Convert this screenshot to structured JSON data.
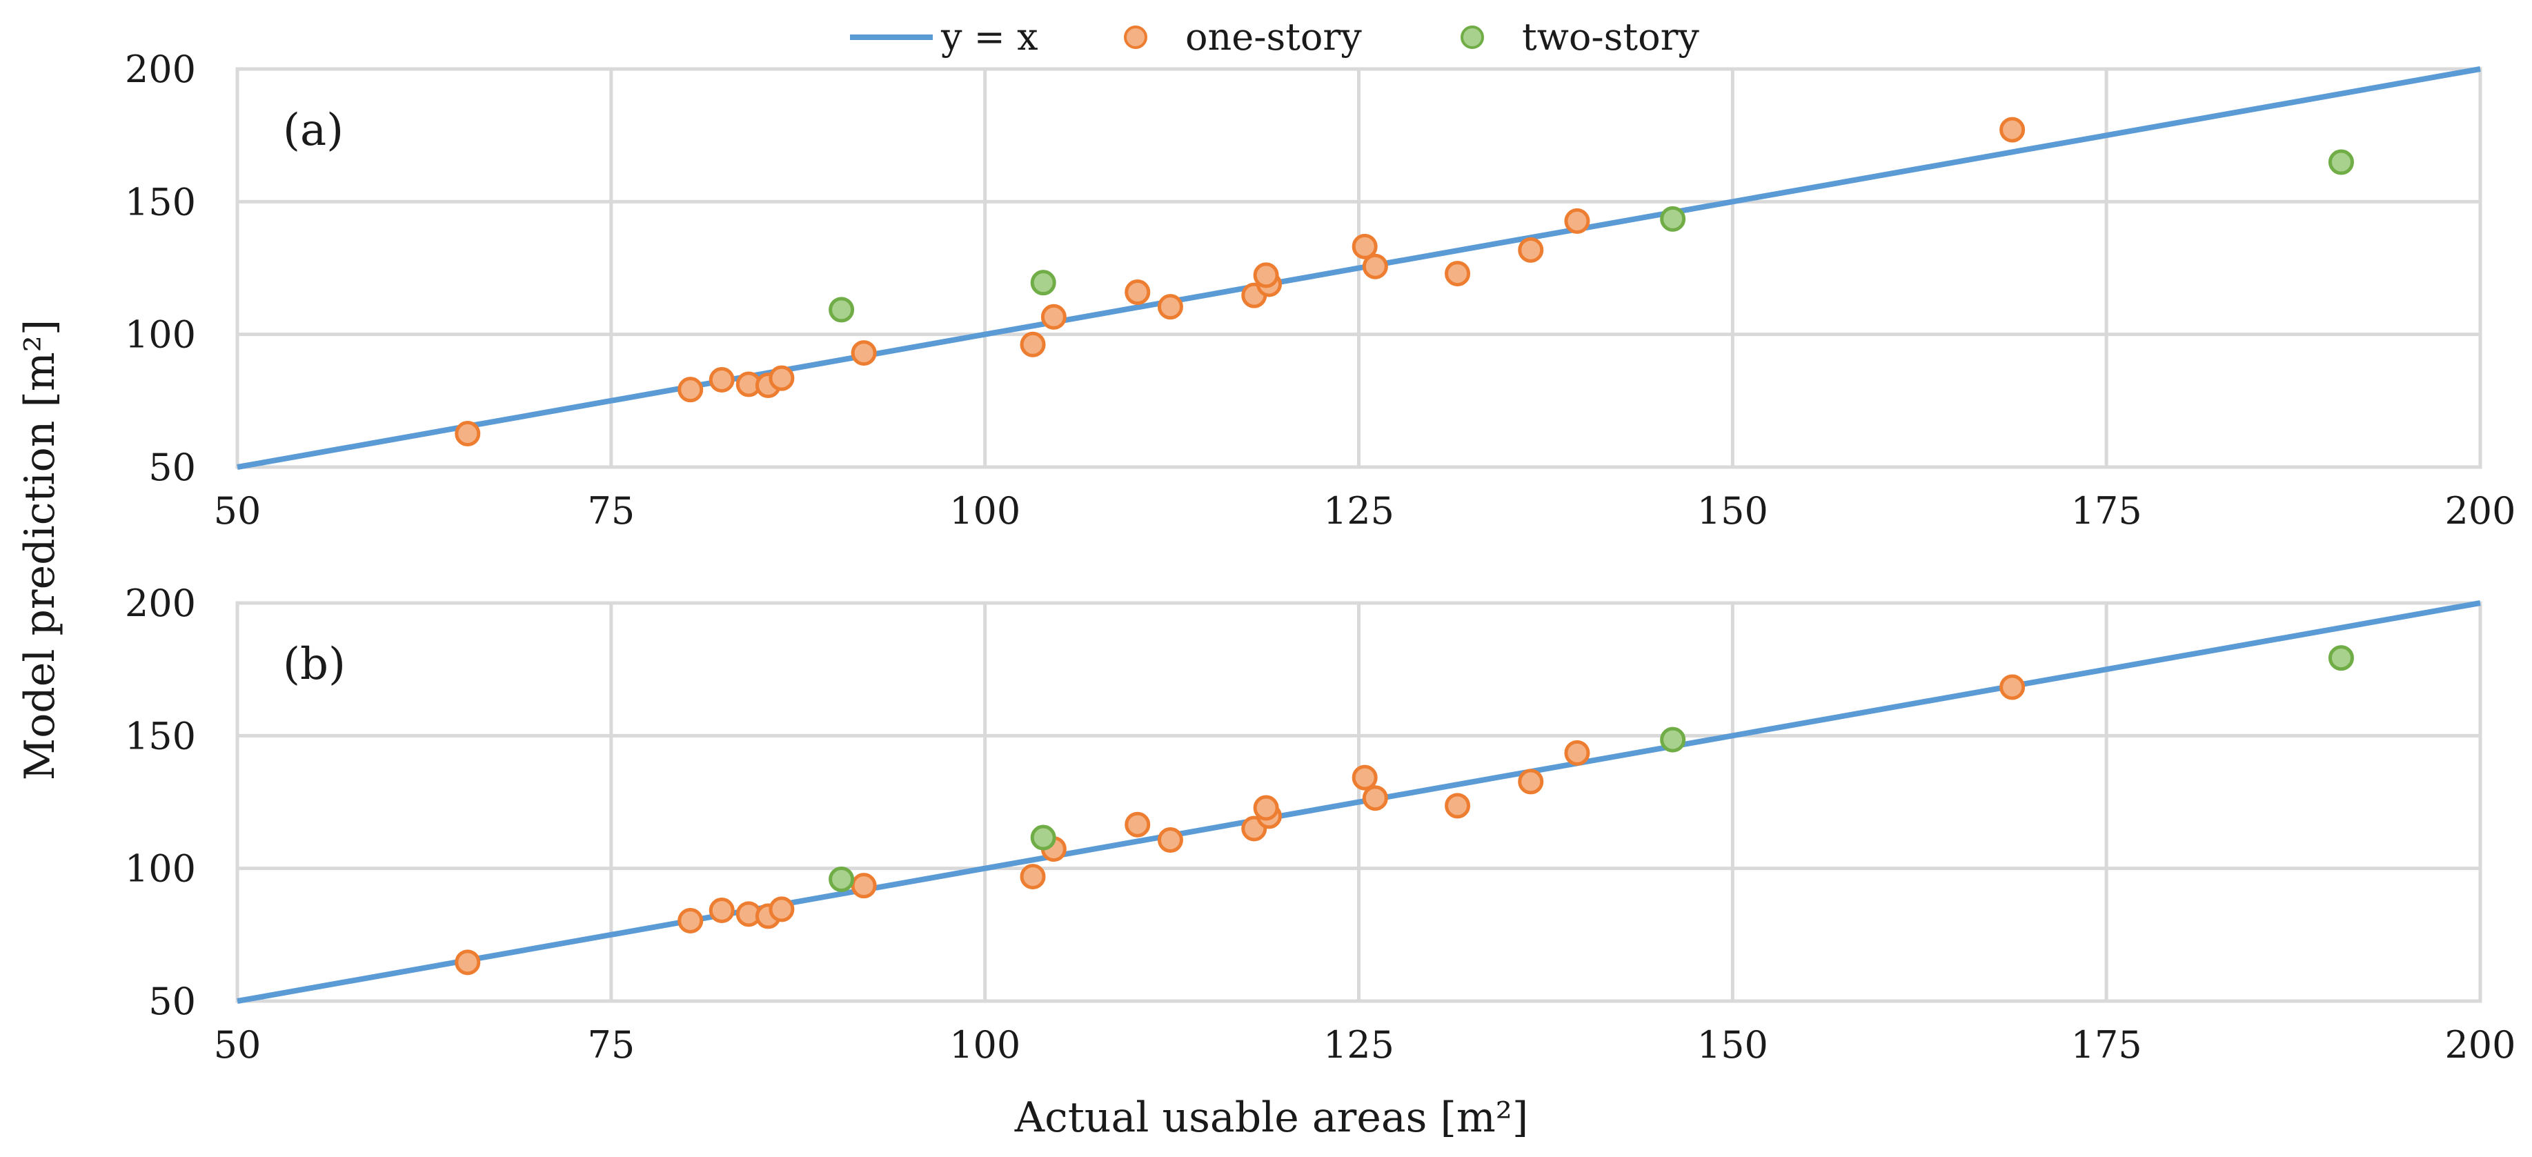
{
  "legend": {
    "identity": "y = x",
    "one_story": "one-story",
    "two_story": "two-story"
  },
  "colors": {
    "identity_line": "#5b9bd5",
    "one_story_fill": "#f4b183",
    "one_story_edge": "#ed7d31",
    "two_story_fill": "#a9d18e",
    "two_story_edge": "#70ad47",
    "grid": "#d9d9d9"
  },
  "chart_data": [
    {
      "type": "scatter",
      "panel_label": "(a)",
      "xlim": [
        50,
        200
      ],
      "ylim": [
        50,
        200
      ],
      "x_ticks": [
        "50",
        "75",
        "100",
        "125",
        "150",
        "175",
        "200"
      ],
      "y_ticks": [
        "50",
        "100",
        "150",
        "200"
      ],
      "xlabel": "Actual usable areas [m²]",
      "ylabel": "Model prediction [m²]",
      "identity_line": {
        "name": "y = x",
        "x": [
          50,
          200
        ],
        "y": [
          50,
          200
        ]
      },
      "series": [
        {
          "name": "one-story",
          "x": [
            65.4,
            80.3,
            82.4,
            84.2,
            85.5,
            86.4,
            91.9,
            103.2,
            104.6,
            110.2,
            112.4,
            118.0,
            119.0,
            118.8,
            125.4,
            126.1,
            131.6,
            136.5,
            139.6,
            168.7
          ],
          "y": [
            62.6,
            79.2,
            82.9,
            81.2,
            80.8,
            83.5,
            93.0,
            96.2,
            106.6,
            115.9,
            110.4,
            114.7,
            118.9,
            122.3,
            133.1,
            125.6,
            122.9,
            131.8,
            142.7,
            177.1
          ]
        },
        {
          "name": "two-story",
          "x": [
            90.4,
            103.9,
            146.0,
            190.7
          ],
          "y": [
            109.3,
            119.5,
            143.5,
            164.9
          ]
        }
      ]
    },
    {
      "type": "scatter",
      "panel_label": "(b)",
      "xlim": [
        50,
        200
      ],
      "ylim": [
        50,
        200
      ],
      "x_ticks": [
        "50",
        "75",
        "100",
        "125",
        "150",
        "175",
        "200"
      ],
      "y_ticks": [
        "50",
        "100",
        "150",
        "200"
      ],
      "xlabel": "Actual usable areas [m²]",
      "ylabel": "Model prediction [m²]",
      "identity_line": {
        "name": "y = x",
        "x": [
          50,
          200
        ],
        "y": [
          50,
          200
        ]
      },
      "series": [
        {
          "name": "one-story",
          "x": [
            65.4,
            80.3,
            82.4,
            84.2,
            85.5,
            86.4,
            91.9,
            103.2,
            104.6,
            110.2,
            112.4,
            118.0,
            119.0,
            118.8,
            125.4,
            126.1,
            131.6,
            136.5,
            139.6,
            168.7
          ],
          "y": [
            64.6,
            80.3,
            84.2,
            82.8,
            82.0,
            84.6,
            93.5,
            96.9,
            107.3,
            116.5,
            110.7,
            115.0,
            119.7,
            122.8,
            134.2,
            126.5,
            123.6,
            132.7,
            143.5,
            168.3
          ]
        },
        {
          "name": "two-story",
          "x": [
            90.4,
            103.9,
            146.0,
            190.7
          ],
          "y": [
            95.9,
            111.6,
            148.5,
            179.3
          ]
        }
      ]
    }
  ]
}
